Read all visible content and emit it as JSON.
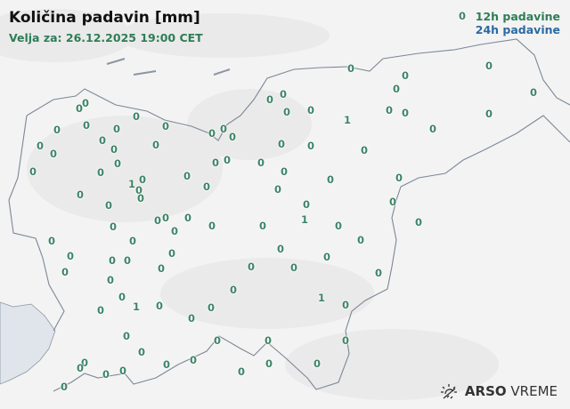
{
  "header": {
    "title": "Količina padavin [mm]",
    "valid_for": "Velja za: 26.12.2025 19:00 CET"
  },
  "legend": {
    "item_12h": "12h padavine",
    "item_24h": "24h padavine",
    "color_12h": "#2e7d57",
    "color_24h": "#2a6aa3"
  },
  "logo": {
    "brand": "ARSO",
    "product": "VREME",
    "icon": "sun-icon"
  },
  "stations": {
    "unit": "mm",
    "period": "12h",
    "values": [
      "0",
      "0",
      "0",
      "0",
      "0",
      "0",
      "0",
      "0",
      "0",
      "0",
      "0",
      "0",
      "1",
      "0",
      "0",
      "0",
      "0",
      "0",
      "0",
      "0",
      "0",
      "0",
      "0",
      "0",
      "0",
      "0",
      "0",
      "0",
      "0",
      "0",
      "0",
      "0",
      "0",
      "0",
      "0",
      "0",
      "0",
      "0",
      "0",
      "0",
      "0",
      "1",
      "0",
      "0",
      "0",
      "0",
      "0",
      "0",
      "0",
      "0",
      "0",
      "0",
      "0",
      "0",
      "0",
      "0",
      "0",
      "1",
      "0",
      "0",
      "0",
      "0",
      "0",
      "0",
      "0",
      "0",
      "0",
      "0",
      "0",
      "0",
      "0",
      "0",
      "0",
      "0",
      "0",
      "1",
      "0",
      "0",
      "0",
      "0",
      "0",
      "0",
      "0",
      "0",
      "0",
      "1",
      "0",
      "0",
      "0",
      "0",
      "0",
      "0",
      "0",
      "0",
      "0",
      "0",
      "0",
      "0",
      "0",
      "0",
      "0",
      "0"
    ]
  }
}
